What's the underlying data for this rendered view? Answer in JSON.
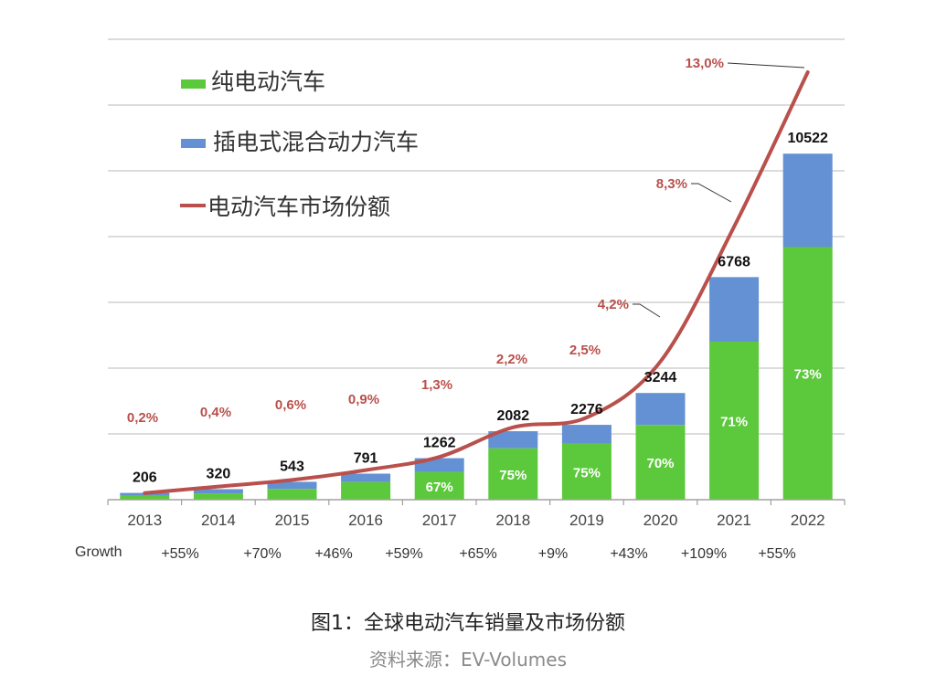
{
  "chart_data": {
    "type": "bar",
    "stacked": true,
    "title": "",
    "xlabel": "",
    "ylabel": "",
    "ylim": [
      0,
      14000
    ],
    "y2lim": [
      0,
      14
    ],
    "grid": true,
    "legend_position": "top-left",
    "categories": [
      "2013",
      "2014",
      "2015",
      "2016",
      "2017",
      "2018",
      "2019",
      "2020",
      "2021",
      "2022"
    ],
    "totals": [
      206,
      320,
      543,
      791,
      1262,
      2082,
      2276,
      3244,
      6768,
      10522
    ],
    "bev_share_pct": [
      60,
      60,
      60,
      68,
      67,
      75,
      75,
      70,
      71,
      73
    ],
    "bev_share_labels": [
      "",
      "",
      "",
      "",
      "67%",
      "75%",
      "75%",
      "70%",
      "71%",
      "73%"
    ],
    "series": [
      {
        "name": "纯电动汽车",
        "color": "#5cc83c",
        "kind": "bar"
      },
      {
        "name": "插电式混合动力汽车",
        "color": "#6391d3",
        "kind": "bar"
      },
      {
        "name": "电动汽车市场份额",
        "color": "#b9504b",
        "kind": "line",
        "values": [
          0.2,
          0.4,
          0.6,
          0.9,
          1.3,
          2.2,
          2.5,
          4.2,
          8.3,
          13.0
        ],
        "labels": [
          "0,2%",
          "0,4%",
          "0,6%",
          "0,9%",
          "1,3%",
          "2,2%",
          "2,5%",
          "4,2%",
          "8,3%",
          "13,0%"
        ]
      }
    ],
    "growth_label": "Growth",
    "growth": [
      "+55%",
      "+70%",
      "+46%",
      "+59%",
      "+65%",
      "+9%",
      "+43%",
      "+109%",
      "+55%"
    ]
  },
  "caption": {
    "title": "图1：全球电动汽车销量及市场份额",
    "source": "资料来源：EV-Volumes"
  }
}
